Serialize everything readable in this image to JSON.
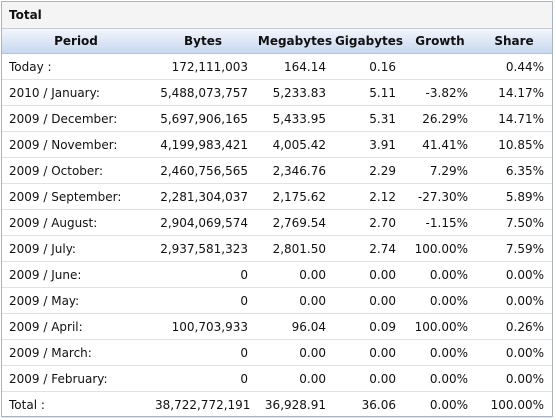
{
  "panel": {
    "title": "Total"
  },
  "table": {
    "columns": [
      "Period",
      "Bytes",
      "Megabytes",
      "Gigabytes",
      "Growth",
      "Share"
    ],
    "rows": [
      [
        "Today :",
        "172,111,003",
        "164.14",
        "0.16",
        null,
        "0.44%"
      ],
      [
        "2010 / January:",
        "5,488,073,757",
        "5,233.83",
        "5.11",
        "-3.82%",
        "14.17%"
      ],
      [
        "2009 / December:",
        "5,697,906,165",
        "5,433.95",
        "5.31",
        "26.29%",
        "14.71%"
      ],
      [
        "2009 / November:",
        "4,199,983,421",
        "4,005.42",
        "3.91",
        "41.41%",
        "10.85%"
      ],
      [
        "2009 / October:",
        "2,460,756,565",
        "2,346.76",
        "2.29",
        "7.29%",
        "6.35%"
      ],
      [
        "2009 / September:",
        "2,281,304,037",
        "2,175.62",
        "2.12",
        "-27.30%",
        "5.89%"
      ],
      [
        "2009 / August:",
        "2,904,069,574",
        "2,769.54",
        "2.70",
        "-1.15%",
        "7.50%"
      ],
      [
        "2009 / July:",
        "2,937,581,323",
        "2,801.50",
        "2.74",
        "100.00%",
        "7.59%"
      ],
      [
        "2009 / June:",
        "0",
        "0.00",
        "0.00",
        "0.00%",
        "0.00%"
      ],
      [
        "2009 / May:",
        "0",
        "0.00",
        "0.00",
        "0.00%",
        "0.00%"
      ],
      [
        "2009 / April:",
        "100,703,933",
        "96.04",
        "0.09",
        "100.00%",
        "0.26%"
      ],
      [
        "2009 / March:",
        "0",
        "0.00",
        "0.00",
        "0.00%",
        "0.00%"
      ],
      [
        "2009 / February:",
        "0",
        "0.00",
        "0.00",
        "0.00%",
        "0.00%"
      ],
      [
        "Total :",
        "38,722,772,191",
        "36,928.91",
        "36.06",
        "0.00%",
        "100.00%"
      ]
    ]
  }
}
